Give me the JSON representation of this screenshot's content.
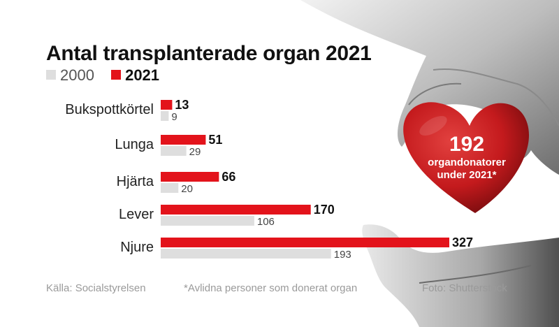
{
  "chart_data": {
    "type": "bar",
    "orientation": "horizontal",
    "title": "Antal transplanterade organ 2021",
    "categories": [
      "Bukspottkörtel",
      "Lunga",
      "Hjärta",
      "Lever",
      "Njure"
    ],
    "series": [
      {
        "name": "2021",
        "values": [
          13,
          51,
          66,
          170,
          327
        ],
        "color": "#e3131b"
      },
      {
        "name": "2000",
        "values": [
          9,
          29,
          20,
          106,
          193
        ],
        "color": "#dedede"
      }
    ],
    "legend_order": [
      "2000",
      "2021"
    ],
    "legend_position": "top-left"
  },
  "callout": {
    "number": "192",
    "line1": "organdonatorer",
    "line2": "under 2021*"
  },
  "footer": {
    "source": "Källa: Socialstyrelsen",
    "note": "*Avlidna personer som donerat organ",
    "photo": "Foto: Shutterstock"
  },
  "colors": {
    "accent": "#e3131b",
    "secondary": "#dedede",
    "text": "#111111",
    "muted": "#9a9a9a"
  }
}
